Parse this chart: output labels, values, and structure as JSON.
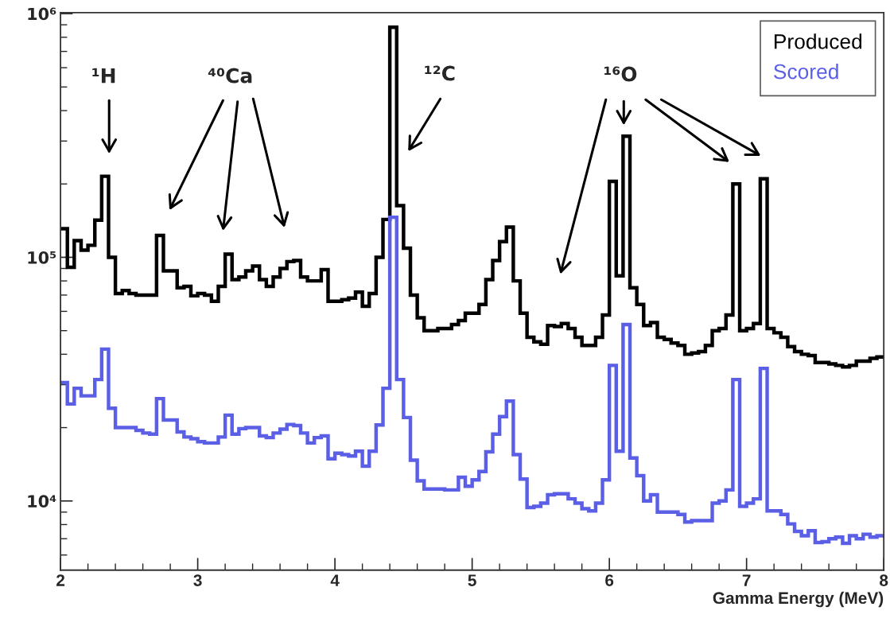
{
  "chart_data": {
    "type": "histogram",
    "xlabel": "Gamma Energy (MeV)",
    "bins": [
      2.0,
      2.05,
      2.1,
      2.15,
      2.2,
      2.25,
      2.3,
      2.35,
      2.4,
      2.45,
      2.5,
      2.55,
      2.6,
      2.65,
      2.7,
      2.75,
      2.8,
      2.85,
      2.9,
      2.95,
      3.0,
      3.05,
      3.1,
      3.15,
      3.2,
      3.25,
      3.3,
      3.35,
      3.4,
      3.45,
      3.5,
      3.55,
      3.6,
      3.65,
      3.7,
      3.75,
      3.8,
      3.85,
      3.9,
      3.95,
      4.0,
      4.05,
      4.1,
      4.15,
      4.2,
      4.25,
      4.3,
      4.35,
      4.4,
      4.45,
      4.5,
      4.55,
      4.6,
      4.65,
      4.7,
      4.75,
      4.8,
      4.85,
      4.9,
      4.95,
      5.0,
      5.05,
      5.1,
      5.15,
      5.2,
      5.25,
      5.3,
      5.35,
      5.4,
      5.45,
      5.5,
      5.55,
      5.6,
      5.65,
      5.7,
      5.75,
      5.8,
      5.85,
      5.9,
      5.95,
      6.0,
      6.05,
      6.1,
      6.15,
      6.2,
      6.25,
      6.3,
      6.35,
      6.4,
      6.45,
      6.5,
      6.55,
      6.6,
      6.65,
      6.7,
      6.75,
      6.8,
      6.85,
      6.9,
      6.95,
      7.0,
      7.05,
      7.1,
      7.15,
      7.2,
      7.25,
      7.3,
      7.35,
      7.4,
      7.45,
      7.5,
      7.55,
      7.6,
      7.65,
      7.7,
      7.75,
      7.8,
      7.85,
      7.9,
      7.95,
      8.0
    ],
    "series": [
      {
        "name": "Produced",
        "color": "#000000",
        "values": [
          131000,
          91000,
          117000,
          107000,
          112000,
          142000,
          215000,
          100000,
          71000,
          73000,
          71000,
          70000,
          70000,
          70000,
          123000,
          88000,
          88000,
          75000,
          76000,
          69500,
          71000,
          70000,
          66000,
          76000,
          103000,
          81000,
          83000,
          88000,
          92000,
          81000,
          76000,
          83000,
          90000,
          96000,
          97000,
          83000,
          80000,
          80000,
          89000,
          66000,
          66000,
          67000,
          68000,
          72000,
          63000,
          71000,
          100000,
          143000,
          880000,
          163000,
          109000,
          70000,
          56500,
          50000,
          50000,
          51000,
          51000,
          53000,
          55000,
          59000,
          59000,
          64000,
          81000,
          97000,
          116000,
          133000,
          80000,
          59000,
          47000,
          45000,
          44000,
          52500,
          52000,
          53500,
          51000,
          47000,
          43500,
          43500,
          47000,
          58000,
          205000,
          84000,
          314000,
          75000,
          64000,
          52500,
          54000,
          47000,
          46000,
          44500,
          43500,
          40000,
          40500,
          41000,
          43500,
          50000,
          51000,
          58000,
          200000,
          50000,
          51000,
          53500,
          210000,
          51000,
          49000,
          47000,
          43000,
          41000,
          40000,
          39500,
          37000,
          37000,
          36500,
          36000,
          35500,
          36000,
          37500,
          37500,
          38500,
          39000
        ]
      },
      {
        "name": "Scored",
        "color": "#5b5fe6",
        "values": [
          30600,
          25000,
          29000,
          27000,
          27000,
          31500,
          42000,
          24000,
          20000,
          20000,
          20000,
          19500,
          19000,
          18800,
          26300,
          21500,
          21500,
          19200,
          18300,
          18000,
          17500,
          17300,
          17300,
          18300,
          22500,
          18800,
          19800,
          20000,
          20000,
          18500,
          18200,
          19000,
          19700,
          20600,
          20400,
          19000,
          17300,
          18200,
          18500,
          14900,
          15700,
          15500,
          15300,
          16000,
          13900,
          16000,
          20500,
          29000,
          146000,
          31500,
          22000,
          14700,
          12100,
          11200,
          11200,
          11200,
          11100,
          11100,
          12500,
          11500,
          12200,
          13200,
          15900,
          18800,
          22200,
          25700,
          15500,
          12300,
          9400,
          9500,
          9800,
          10600,
          10700,
          10700,
          10200,
          9800,
          9300,
          9100,
          9800,
          12200,
          36000,
          16000,
          53000,
          15000,
          12700,
          10000,
          10600,
          9000,
          9000,
          9000,
          8800,
          8200,
          8300,
          8300,
          8300,
          9800,
          10000,
          11100,
          31500,
          9500,
          9800,
          10200,
          35000,
          9100,
          9100,
          8800,
          8050,
          7500,
          7200,
          7550,
          6750,
          6800,
          7000,
          7100,
          6700,
          7200,
          7000,
          7300,
          7100,
          7200
        ]
      }
    ],
    "log": "y",
    "xlim": [
      2,
      8
    ],
    "xticks": [
      2,
      3,
      4,
      5,
      6,
      7,
      8
    ],
    "ylim": [
      5200,
      1010000
    ],
    "yticks": [
      {
        "value": 10000,
        "label": "10⁴"
      },
      {
        "value": 100000,
        "label": "10⁵"
      },
      {
        "value": 1000000,
        "label": "10⁶"
      }
    ],
    "legend": "top right",
    "annotations": [
      "¹H",
      "⁴⁰Ca",
      "¹²C",
      "¹⁶O"
    ]
  }
}
